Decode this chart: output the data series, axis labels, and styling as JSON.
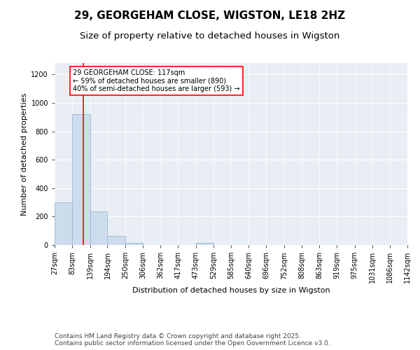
{
  "title": "29, GEORGEHAM CLOSE, WIGSTON, LE18 2HZ",
  "subtitle": "Size of property relative to detached houses in Wigston",
  "xlabel": "Distribution of detached houses by size in Wigston",
  "ylabel": "Number of detached properties",
  "footnote": "Contains HM Land Registry data © Crown copyright and database right 2025.\nContains public sector information licensed under the Open Government Licence v3.0.",
  "bin_edges": [
    27,
    83,
    139,
    194,
    250,
    306,
    362,
    417,
    473,
    529,
    585,
    640,
    696,
    752,
    808,
    863,
    919,
    975,
    1031,
    1086,
    1142
  ],
  "bar_heights": [
    300,
    920,
    235,
    65,
    15,
    0,
    0,
    0,
    15,
    0,
    0,
    0,
    0,
    0,
    0,
    0,
    0,
    0,
    0,
    0
  ],
  "bar_color": "#ccdcec",
  "bar_edgecolor": "#9ab8d0",
  "red_line_x": 117,
  "annotation_text": "29 GEORGEHAM CLOSE: 117sqm\n← 59% of detached houses are smaller (890)\n40% of semi-detached houses are larger (593) →",
  "annotation_box_color": "white",
  "annotation_box_edgecolor": "red",
  "red_line_color": "red",
  "ylim": [
    0,
    1280
  ],
  "yticks": [
    0,
    200,
    400,
    600,
    800,
    1000,
    1200
  ],
  "background_color": "#e8eef4",
  "grid_color": "#ffffff",
  "title_fontsize": 11,
  "subtitle_fontsize": 9.5,
  "axis_label_fontsize": 8,
  "tick_fontsize": 7,
  "annotation_fontsize": 7,
  "footnote_fontsize": 6.5
}
